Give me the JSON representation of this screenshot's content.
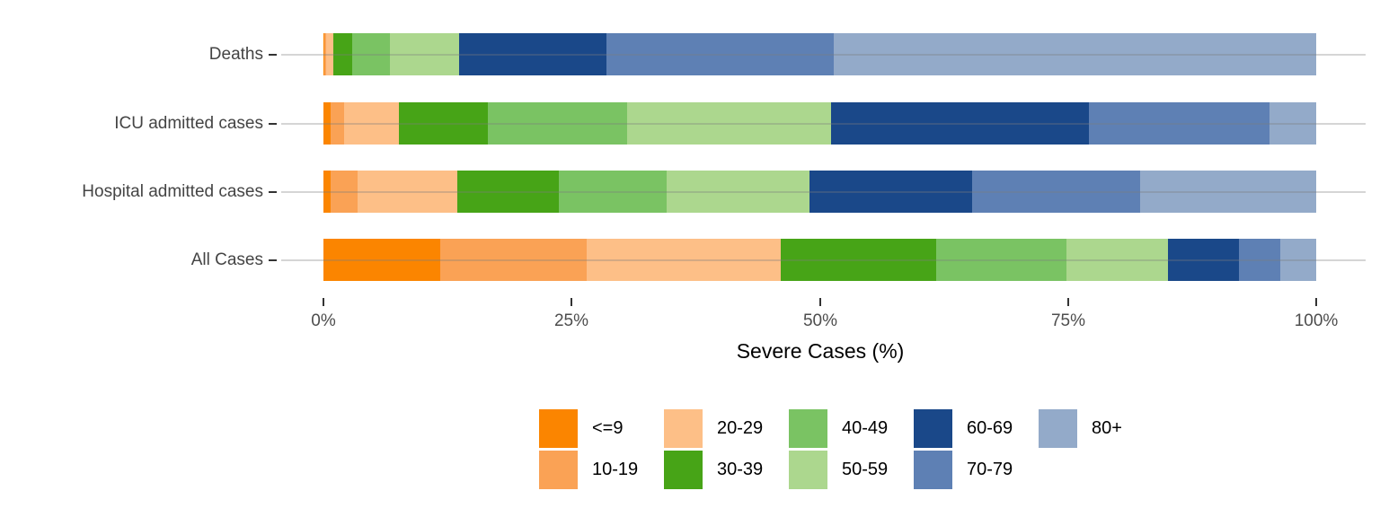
{
  "chart_data": {
    "type": "bar",
    "orientation": "horizontal",
    "stacked": true,
    "title": "",
    "xlabel": "Severe Cases (%)",
    "ylabel": "",
    "xlim": [
      0,
      100
    ],
    "x_tick_values": [
      0,
      25,
      50,
      75,
      100
    ],
    "x_ticks": [
      "0%",
      "25%",
      "50%",
      "75%",
      "100%"
    ],
    "grid": "horizontal-major-only",
    "legend_position": "bottom",
    "legend_rows": 2,
    "legend_fill": "column-major",
    "categories": [
      "Deaths",
      "ICU admitted cases",
      "Hospital admitted cases",
      "All Cases"
    ],
    "series": [
      {
        "name": "<=9",
        "color": "#FB8500",
        "values": [
          0.1,
          0.7,
          0.7,
          11.8
        ]
      },
      {
        "name": "10-19",
        "color": "#FAA255",
        "values": [
          0.2,
          1.4,
          2.7,
          14.7
        ]
      },
      {
        "name": "20-29",
        "color": "#FDBF87",
        "values": [
          0.7,
          5.5,
          10.1,
          19.6
        ]
      },
      {
        "name": "30-39",
        "color": "#47A417",
        "values": [
          1.9,
          9.0,
          10.2,
          15.6
        ]
      },
      {
        "name": "40-49",
        "color": "#7AC363",
        "values": [
          3.8,
          14.0,
          10.9,
          13.1
        ]
      },
      {
        "name": "50-59",
        "color": "#ACD78E",
        "values": [
          7.0,
          20.5,
          14.4,
          10.3
        ]
      },
      {
        "name": "60-69",
        "color": "#1A4889",
        "values": [
          14.8,
          26.0,
          16.3,
          7.1
        ]
      },
      {
        "name": "70-79",
        "color": "#5E80B4",
        "values": [
          22.9,
          18.2,
          17.0,
          4.2
        ]
      },
      {
        "name": "80+",
        "color": "#93AAC9",
        "values": [
          48.6,
          4.7,
          17.7,
          3.6
        ]
      }
    ]
  },
  "style": {
    "gridline_color": "#d9d9d9",
    "tick_color": "#333333",
    "category_label_color": "#444444",
    "tick_label_color": "#4d4d4d",
    "axis_title_color": "#000000"
  }
}
